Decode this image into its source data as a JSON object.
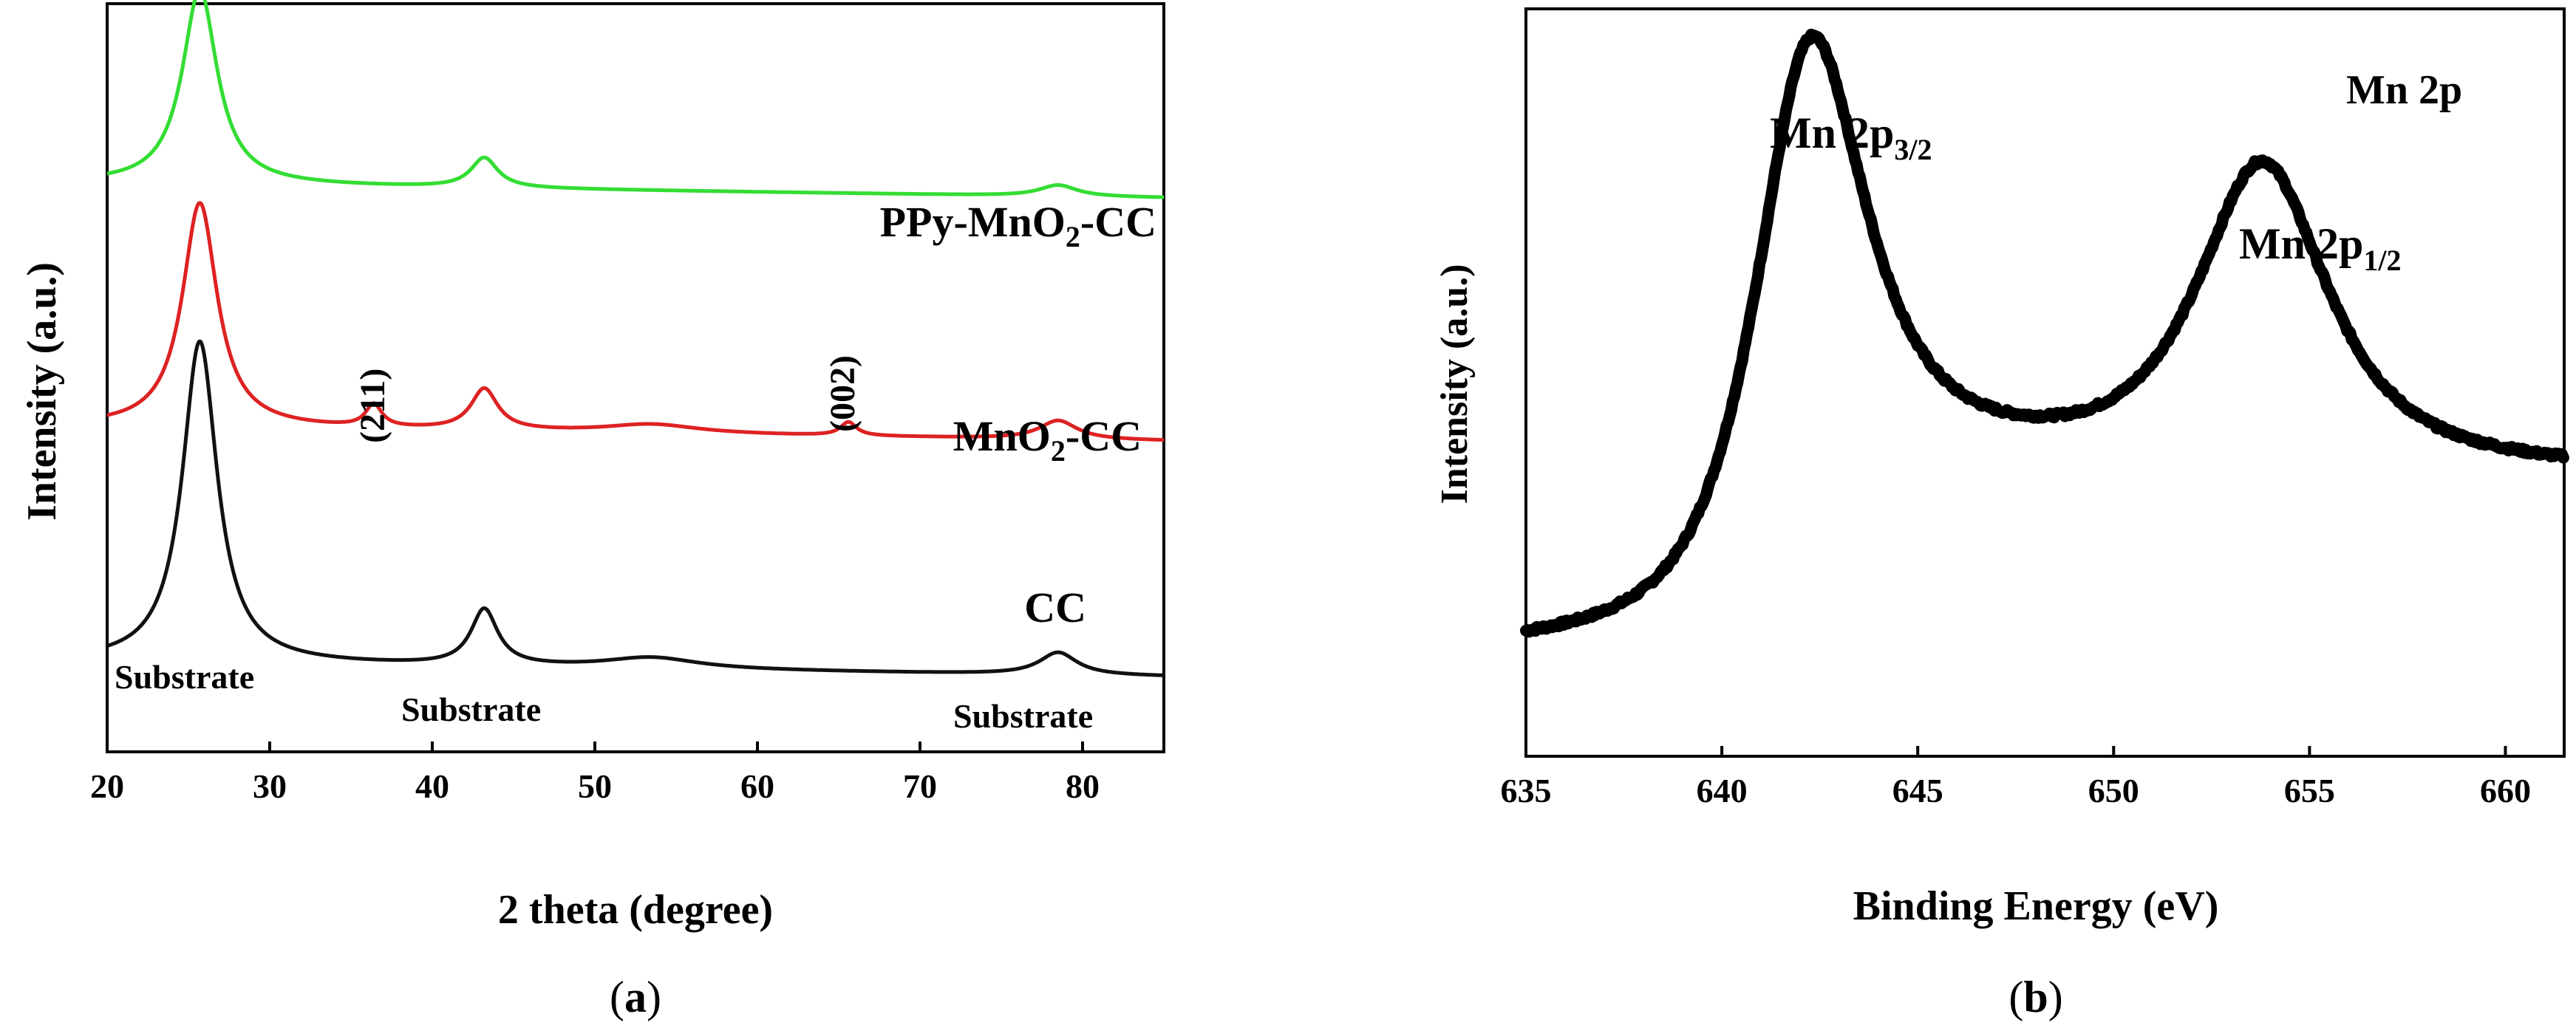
{
  "chart_data": [
    {
      "type": "line",
      "panel_label": "a",
      "xlabel": "2 theta (degree)",
      "ylabel": "Intensity (a.u.)",
      "xlim": [
        20,
        85
      ],
      "xticks": [
        "20",
        "30",
        "40",
        "50",
        "60",
        "70",
        "80"
      ],
      "yticks_labeled": false,
      "series": [
        {
          "name": "PPy-MnO2-CC",
          "label_main": "PPy-MnO",
          "label_sub": "2",
          "label_tail": "-CC",
          "color": "#33dd33",
          "baseline": 0.76,
          "peaks": [
            {
              "x": 25.7,
              "height": 0.26,
              "width": 1.3
            },
            {
              "x": 43.2,
              "height": 0.04,
              "width": 1.0
            },
            {
              "x": 78.5,
              "height": 0.015,
              "width": 1.4
            }
          ]
        },
        {
          "name": "MnO2-CC",
          "label_main": "MnO",
          "label_sub": "2",
          "label_tail": "-CC",
          "color": "#dd2222",
          "baseline": 0.435,
          "peaks": [
            {
              "x": 25.7,
              "height": 0.3,
              "width": 1.3
            },
            {
              "x": 36.4,
              "height": 0.03,
              "width": 0.6
            },
            {
              "x": 43.2,
              "height": 0.055,
              "width": 1.0
            },
            {
              "x": 53.5,
              "height": 0.012,
              "width": 3.5
            },
            {
              "x": 65.6,
              "height": 0.018,
              "width": 0.6
            },
            {
              "x": 78.5,
              "height": 0.025,
              "width": 1.4
            }
          ]
        },
        {
          "name": "CC",
          "label_main": "CC",
          "label_sub": "",
          "label_tail": "",
          "color": "#111111",
          "baseline": 0.12,
          "peaks": [
            {
              "x": 25.7,
              "height": 0.43,
              "width": 1.3
            },
            {
              "x": 43.2,
              "height": 0.075,
              "width": 1.0
            },
            {
              "x": 53.5,
              "height": 0.015,
              "width": 3.5
            },
            {
              "x": 78.5,
              "height": 0.03,
              "width": 1.4
            }
          ]
        }
      ],
      "annotations": [
        "(211)",
        "(002)",
        "Substrate",
        "Substrate",
        "Substrate"
      ]
    },
    {
      "type": "line",
      "panel_label": "b",
      "title": "Mn 2p",
      "xlabel": "Binding Energy (eV)",
      "ylabel": "Intensity (a.u.)",
      "xlim": [
        635,
        661.5
      ],
      "xticks": [
        "635",
        "640",
        "645",
        "650",
        "655",
        "660"
      ],
      "yticks_labeled": false,
      "series": [
        {
          "name": "Mn 2p spectrum",
          "color": "#000000",
          "baseline_low": 0.135,
          "baseline_high": 0.375,
          "step_center": 641.5,
          "peaks": [
            {
              "x": 642.2,
              "height": 0.65,
              "width": 1.7
            },
            {
              "x": 653.8,
              "height": 0.41,
              "width": 2.0
            }
          ]
        }
      ],
      "annotations": [
        {
          "main": "Mn 2p",
          "sub": "3/2"
        },
        {
          "main": "Mn 2p",
          "sub": "1/2"
        }
      ]
    }
  ]
}
